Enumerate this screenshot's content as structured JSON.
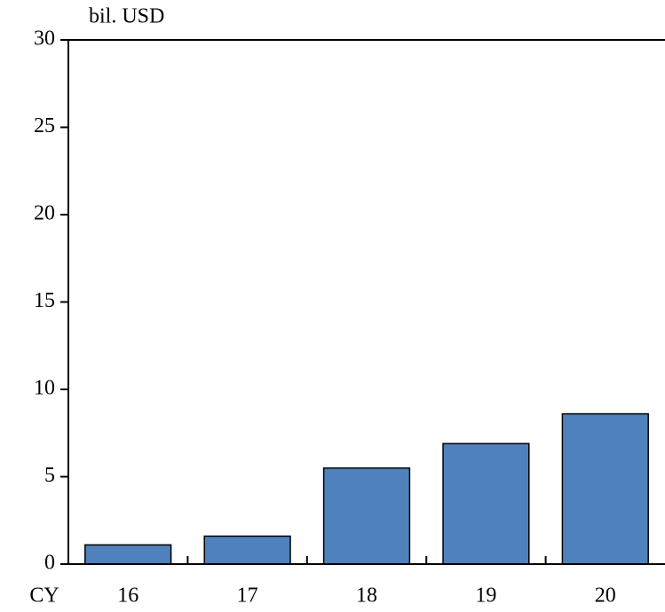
{
  "chart_data": {
    "type": "bar",
    "y_label": "bil. USD",
    "x_label": "CY",
    "categories": [
      "16",
      "17",
      "18",
      "19",
      "20"
    ],
    "values": [
      1.1,
      1.6,
      5.5,
      6.9,
      8.6
    ],
    "color": "#4f81bd",
    "ylim": [
      0,
      30
    ],
    "yticks": [
      0,
      5,
      10,
      15,
      20,
      25,
      30
    ],
    "grid": false
  }
}
